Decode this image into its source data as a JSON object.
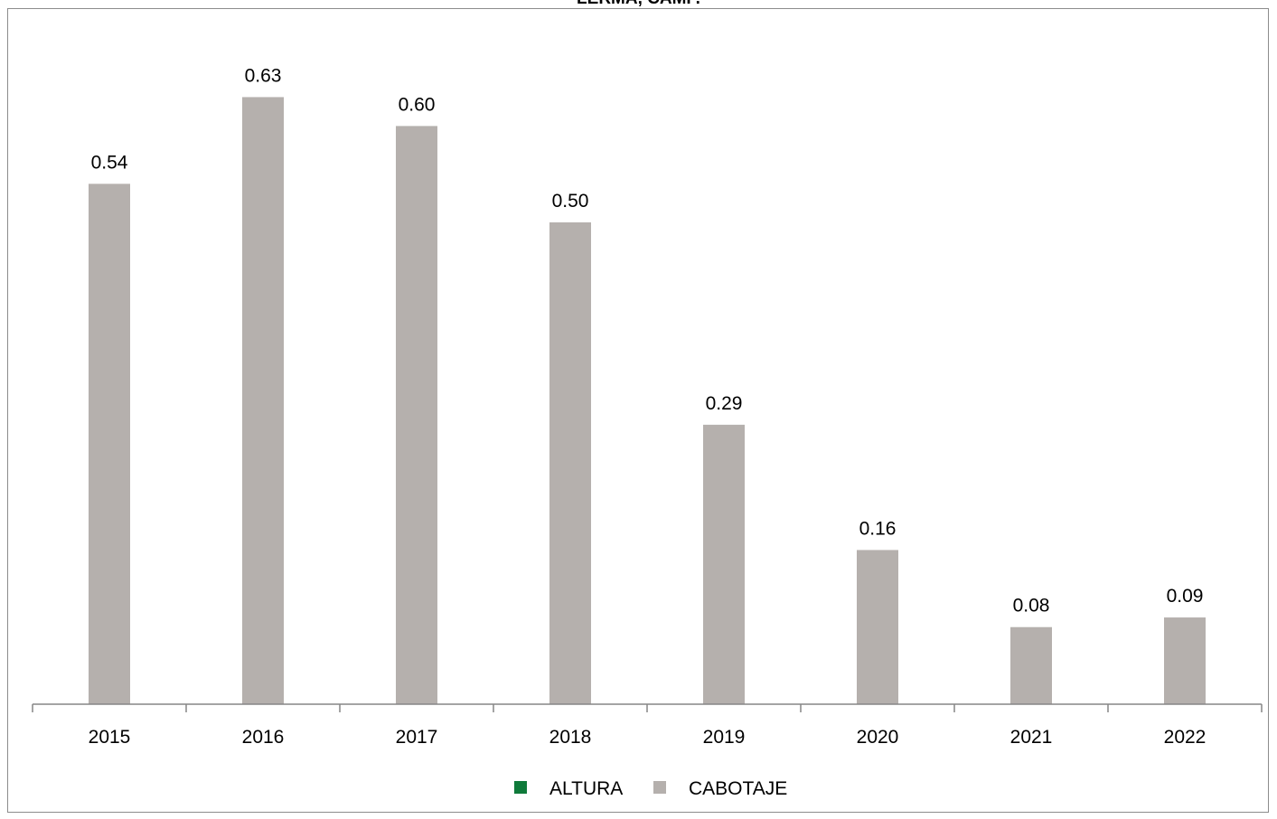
{
  "chart_data": {
    "type": "bar",
    "title": "LERMA, CAMP.",
    "categories": [
      "2015",
      "2016",
      "2017",
      "2018",
      "2019",
      "2020",
      "2021",
      "2022"
    ],
    "series": [
      {
        "name": "ALTURA",
        "color": "#0f7a3a",
        "values": [
          0,
          0,
          0,
          0,
          0,
          0,
          0,
          0
        ]
      },
      {
        "name": "CABOTAJE",
        "color": "#b5b0ad",
        "values": [
          0.54,
          0.63,
          0.6,
          0.5,
          0.29,
          0.16,
          0.08,
          0.09
        ]
      }
    ],
    "data_labels": [
      "0.54",
      "0.63",
      "0.60",
      "0.50",
      "0.29",
      "0.16",
      "0.08",
      "0.09"
    ],
    "ylim": [
      0,
      0.68
    ],
    "grid": false,
    "legend_position": "bottom"
  }
}
